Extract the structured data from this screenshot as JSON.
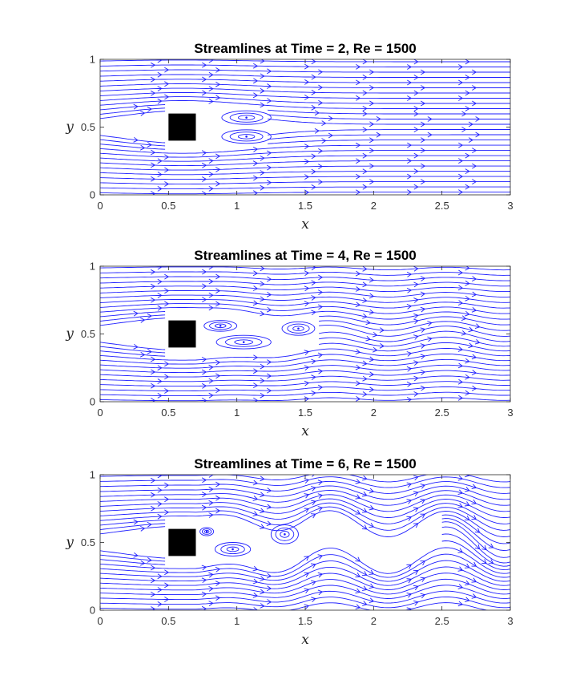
{
  "chart_data": [
    {
      "type": "streamline",
      "title": "Streamlines at Time = 2, Re = 1500",
      "xlabel": "x",
      "ylabel": "y",
      "xlim": [
        0,
        3
      ],
      "ylim": [
        0,
        1
      ],
      "xticks": [
        "0",
        "0.5",
        "1",
        "1.5",
        "2",
        "2.5",
        "3"
      ],
      "yticks": [
        "0",
        "0.5",
        "1"
      ],
      "obstacle": {
        "x": [
          0.5,
          0.7
        ],
        "y": [
          0.4,
          0.6
        ],
        "color": "#000000"
      },
      "line_color": "#1f1fff",
      "wake": {
        "length": 0.85,
        "amplitude": 0.0,
        "vortices": [
          {
            "x": 1.07,
            "y": 0.57,
            "rx": 0.18,
            "ry": 0.05
          },
          {
            "x": 1.07,
            "y": 0.43,
            "rx": 0.18,
            "ry": 0.05
          }
        ]
      }
    },
    {
      "type": "streamline",
      "title": "Streamlines at Time = 4, Re = 1500",
      "xlabel": "x",
      "ylabel": "y",
      "xlim": [
        0,
        3
      ],
      "ylim": [
        0,
        1
      ],
      "xticks": [
        "0",
        "0.5",
        "1",
        "1.5",
        "2",
        "2.5",
        "3"
      ],
      "yticks": [
        "0",
        "0.5",
        "1"
      ],
      "obstacle": {
        "x": [
          0.5,
          0.7
        ],
        "y": [
          0.4,
          0.6
        ],
        "color": "#000000"
      },
      "line_color": "#1f1fff",
      "wake": {
        "length": 1.5,
        "amplitude": 0.04,
        "vortices": [
          {
            "x": 0.88,
            "y": 0.56,
            "rx": 0.12,
            "ry": 0.04
          },
          {
            "x": 1.05,
            "y": 0.44,
            "rx": 0.2,
            "ry": 0.05
          },
          {
            "x": 1.45,
            "y": 0.54,
            "rx": 0.12,
            "ry": 0.05
          }
        ]
      }
    },
    {
      "type": "streamline",
      "title": "Streamlines at Time = 6, Re = 1500",
      "xlabel": "x",
      "ylabel": "y",
      "xlim": [
        0,
        3
      ],
      "ylim": [
        0,
        1
      ],
      "xticks": [
        "0",
        "0.5",
        "1",
        "1.5",
        "2",
        "2.5",
        "3"
      ],
      "yticks": [
        "0",
        "0.5",
        "1"
      ],
      "obstacle": {
        "x": [
          0.5,
          0.7
        ],
        "y": [
          0.4,
          0.6
        ],
        "color": "#000000"
      },
      "line_color": "#1f1fff",
      "wake": {
        "length": 3.0,
        "amplitude": 0.14,
        "vortices": [
          {
            "x": 0.97,
            "y": 0.45,
            "rx": 0.13,
            "ry": 0.05
          },
          {
            "x": 1.35,
            "y": 0.56,
            "rx": 0.1,
            "ry": 0.07
          },
          {
            "x": 0.78,
            "y": 0.58,
            "rx": 0.05,
            "ry": 0.03
          }
        ]
      }
    }
  ]
}
